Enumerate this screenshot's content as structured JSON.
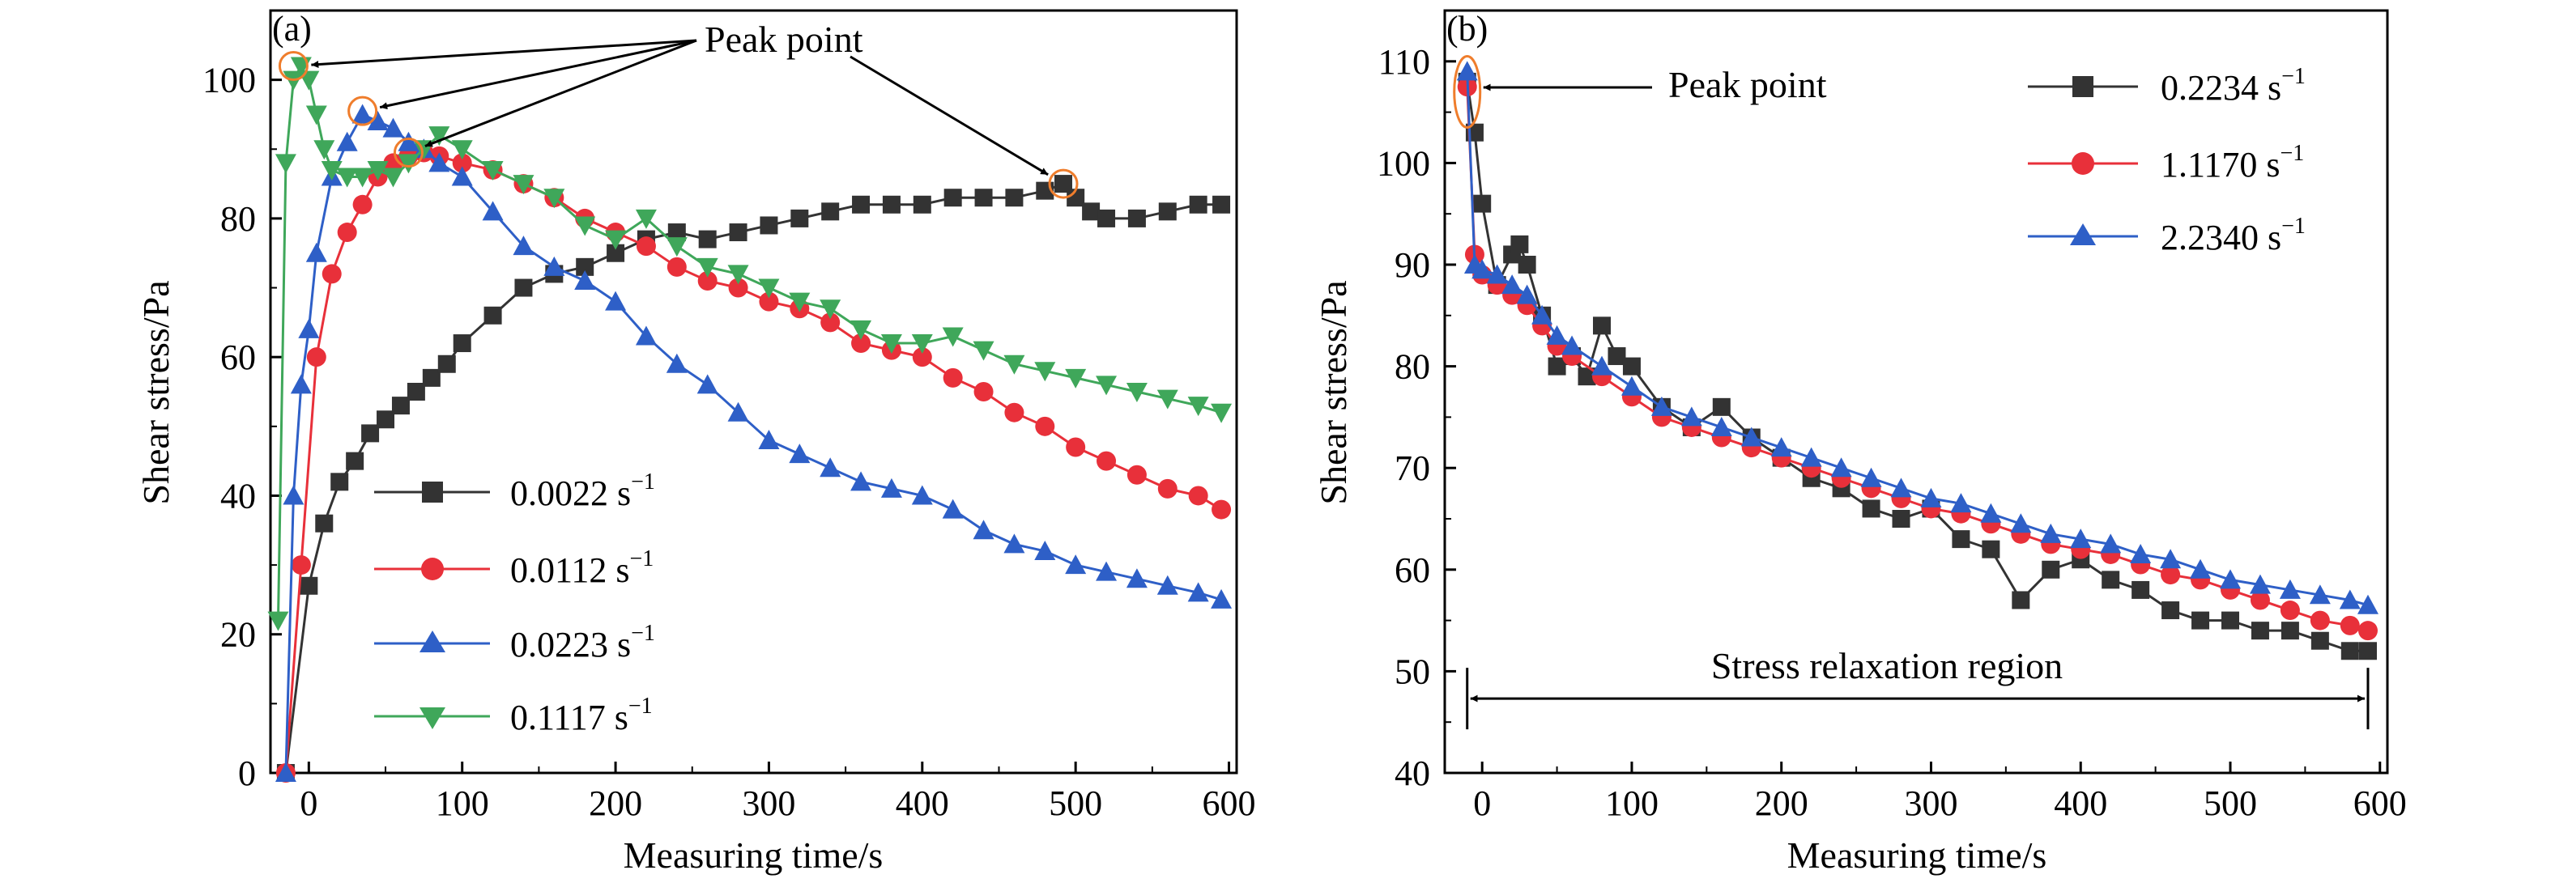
{
  "chart_data": [
    {
      "type": "line",
      "panel_label": "(a)",
      "xlabel": "Measuring time/s",
      "ylabel": "Shear stress/Pa",
      "xlim": [
        -25,
        605
      ],
      "ylim": [
        0,
        110
      ],
      "xticks": [
        0,
        100,
        200,
        300,
        400,
        500,
        600
      ],
      "yticks": [
        0,
        20,
        40,
        60,
        80,
        100
      ],
      "grid": false,
      "legend_position": "bottom-left",
      "annotations": [
        {
          "text": "Peak point",
          "targets": [
            [
              -10,
              102
            ],
            [
              35,
              95.5
            ],
            [
              65,
              89.5
            ],
            [
              492,
              85
            ]
          ]
        }
      ],
      "series": [
        {
          "name": "0.0022 s",
          "exponent": "−1",
          "color": "#333333",
          "marker": "square",
          "x": [
            -15,
            0,
            10,
            20,
            30,
            40,
            50,
            60,
            70,
            80,
            90,
            100,
            120,
            140,
            160,
            180,
            200,
            220,
            240,
            260,
            280,
            300,
            320,
            340,
            360,
            380,
            400,
            420,
            440,
            460,
            480,
            492,
            500,
            510,
            520,
            540,
            560,
            580,
            595
          ],
          "y": [
            0,
            27,
            36,
            42,
            45,
            49,
            51,
            53,
            55,
            57,
            59,
            62,
            66,
            70,
            72,
            73,
            75,
            77,
            78,
            77,
            78,
            79,
            80,
            81,
            82,
            82,
            82,
            83,
            83,
            83,
            84,
            85,
            83,
            81,
            80,
            80,
            81,
            82,
            82
          ]
        },
        {
          "name": "0.0112 s",
          "exponent": "−1",
          "color": "#e8303a",
          "marker": "circle",
          "x": [
            -15,
            -5,
            5,
            15,
            25,
            35,
            45,
            55,
            65,
            75,
            85,
            100,
            120,
            140,
            160,
            180,
            200,
            220,
            240,
            260,
            280,
            300,
            320,
            340,
            360,
            380,
            400,
            420,
            440,
            460,
            480,
            500,
            520,
            540,
            560,
            580,
            595
          ],
          "y": [
            0,
            30,
            60,
            72,
            78,
            82,
            86,
            88,
            89,
            89.5,
            89,
            88,
            87,
            85,
            83,
            80,
            78,
            76,
            73,
            71,
            70,
            68,
            67,
            65,
            62,
            61,
            60,
            57,
            55,
            52,
            50,
            47,
            45,
            43,
            41,
            40,
            38
          ]
        },
        {
          "name": "0.0223 s",
          "exponent": "−1",
          "color": "#2e5fc7",
          "marker": "triangle-up",
          "x": [
            -15,
            -10,
            -5,
            0,
            5,
            15,
            25,
            35,
            45,
            55,
            65,
            75,
            85,
            100,
            120,
            140,
            160,
            180,
            200,
            220,
            240,
            260,
            280,
            300,
            320,
            340,
            360,
            380,
            400,
            420,
            440,
            460,
            480,
            500,
            520,
            540,
            560,
            580,
            595
          ],
          "y": [
            0,
            40,
            56,
            64,
            75,
            86,
            91,
            95,
            94,
            93,
            91,
            90,
            88,
            86,
            81,
            76,
            73,
            71,
            68,
            63,
            59,
            56,
            52,
            48,
            46,
            44,
            42,
            41,
            40,
            38,
            35,
            33,
            32,
            30,
            29,
            28,
            27,
            26,
            25
          ]
        },
        {
          "name": "0.1117 s",
          "exponent": "−1",
          "color": "#3fa75a",
          "marker": "triangle-down",
          "x": [
            -20,
            -15,
            -10,
            -5,
            0,
            5,
            10,
            15,
            25,
            35,
            45,
            55,
            65,
            75,
            85,
            100,
            120,
            140,
            160,
            180,
            200,
            220,
            240,
            260,
            280,
            300,
            320,
            340,
            360,
            380,
            400,
            420,
            440,
            460,
            480,
            500,
            520,
            540,
            560,
            580,
            595
          ],
          "y": [
            22,
            88,
            100,
            102,
            100,
            95,
            90,
            87,
            86,
            86,
            87,
            86,
            88,
            90,
            92,
            90,
            87,
            85,
            83,
            79,
            77,
            80,
            76,
            73,
            72,
            70,
            68,
            67,
            64,
            62,
            62,
            63,
            61,
            59,
            58,
            57,
            56,
            55,
            54,
            53,
            52
          ]
        }
      ]
    },
    {
      "type": "line",
      "panel_label": "(b)",
      "xlabel": "Measuring time/s",
      "ylabel": "Shear stress/Pa",
      "xlim": [
        -25,
        605
      ],
      "ylim": [
        40,
        115
      ],
      "xticks": [
        0,
        100,
        200,
        300,
        400,
        500,
        600
      ],
      "yticks": [
        40,
        50,
        60,
        70,
        80,
        90,
        100,
        110
      ],
      "grid": false,
      "legend_position": "top-right",
      "annotations": [
        {
          "text": "Peak point",
          "targets": [
            [
              -10,
              107
            ]
          ]
        },
        {
          "text": "Stress relaxation region",
          "span": [
            -10,
            592
          ],
          "y": 47
        }
      ],
      "series": [
        {
          "name": "0.2234 s",
          "exponent": "−1",
          "color": "#333333",
          "marker": "square",
          "x": [
            -10,
            -5,
            0,
            10,
            20,
            25,
            30,
            40,
            50,
            60,
            70,
            80,
            90,
            100,
            120,
            140,
            160,
            180,
            200,
            220,
            240,
            260,
            280,
            300,
            320,
            340,
            360,
            380,
            400,
            420,
            440,
            460,
            480,
            500,
            520,
            540,
            560,
            580,
            592
          ],
          "y": [
            108,
            103,
            96,
            88,
            91,
            92,
            90,
            85,
            80,
            81,
            79,
            84,
            81,
            80,
            76,
            74,
            76,
            73,
            71,
            69,
            68,
            66,
            65,
            66,
            63,
            62,
            57,
            60,
            61,
            59,
            58,
            56,
            55,
            55,
            54,
            54,
            53,
            52,
            52
          ]
        },
        {
          "name": "1.1170 s",
          "exponent": "−1",
          "color": "#e8303a",
          "marker": "circle",
          "x": [
            -10,
            -5,
            0,
            10,
            20,
            30,
            40,
            50,
            60,
            80,
            100,
            120,
            140,
            160,
            180,
            200,
            220,
            240,
            260,
            280,
            300,
            320,
            340,
            360,
            380,
            400,
            420,
            440,
            460,
            480,
            500,
            520,
            540,
            560,
            580,
            592
          ],
          "y": [
            107.5,
            91,
            89,
            88,
            87,
            86,
            84,
            82,
            81,
            79,
            77,
            75,
            74,
            73,
            72,
            71,
            70,
            69,
            68,
            67,
            66,
            65.5,
            64.5,
            63.5,
            62.5,
            62,
            61.5,
            60.5,
            59.5,
            59,
            58,
            57,
            56,
            55,
            54.5,
            54
          ]
        },
        {
          "name": "2.2340 s",
          "exponent": "−1",
          "color": "#2e5fc7",
          "marker": "triangle-up",
          "x": [
            -10,
            -5,
            0,
            10,
            20,
            30,
            40,
            50,
            60,
            80,
            100,
            120,
            140,
            160,
            180,
            200,
            220,
            240,
            260,
            280,
            300,
            320,
            340,
            360,
            380,
            400,
            420,
            440,
            460,
            480,
            500,
            520,
            540,
            560,
            580,
            592
          ],
          "y": [
            109,
            90,
            89.5,
            89,
            88,
            87,
            85,
            83,
            82,
            80,
            78,
            76,
            75,
            74,
            73,
            72,
            71,
            70,
            69,
            68,
            67,
            66.5,
            65.5,
            64.5,
            63.5,
            63,
            62.5,
            61.5,
            61,
            60,
            59,
            58.5,
            58,
            57.5,
            57,
            56.5
          ]
        }
      ]
    }
  ]
}
